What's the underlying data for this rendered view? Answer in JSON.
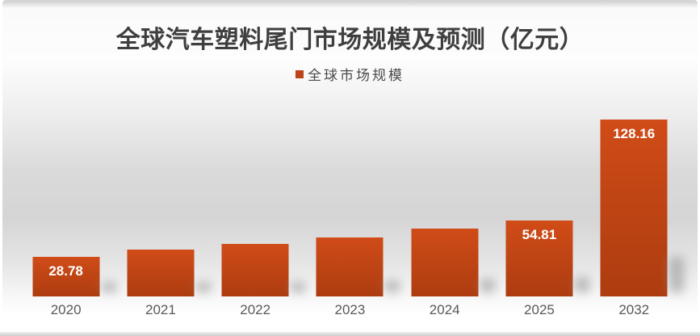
{
  "chart_data": {
    "type": "bar",
    "title": "全球汽车塑料尾门市场规模及预测（亿元）",
    "categories": [
      "2020",
      "2021",
      "2022",
      "2023",
      "2024",
      "2025",
      "2032"
    ],
    "series": [
      {
        "name": "全球市场规模",
        "values": [
          28.78,
          34.0,
          38.0,
          43.0,
          49.0,
          54.81,
          128.16
        ]
      }
    ],
    "data_labels": [
      "28.78",
      null,
      null,
      null,
      null,
      "54.81",
      "128.16"
    ],
    "ylim": [
      0,
      135
    ],
    "grid": false,
    "y_axis_visible": false,
    "legend": {
      "position": "top",
      "entries": [
        {
          "label": "全球市场规模",
          "swatch_color": "#bc4418"
        }
      ]
    },
    "bar_style": {
      "gradient_top": "#d04c18",
      "gradient_bottom": "#ad3c10"
    }
  },
  "colors": {
    "title_color": "#3f3f3f",
    "legend_text_color": "#4a4a4a",
    "axis_label_color": "#595959",
    "data_label_color": "#ffffff"
  }
}
